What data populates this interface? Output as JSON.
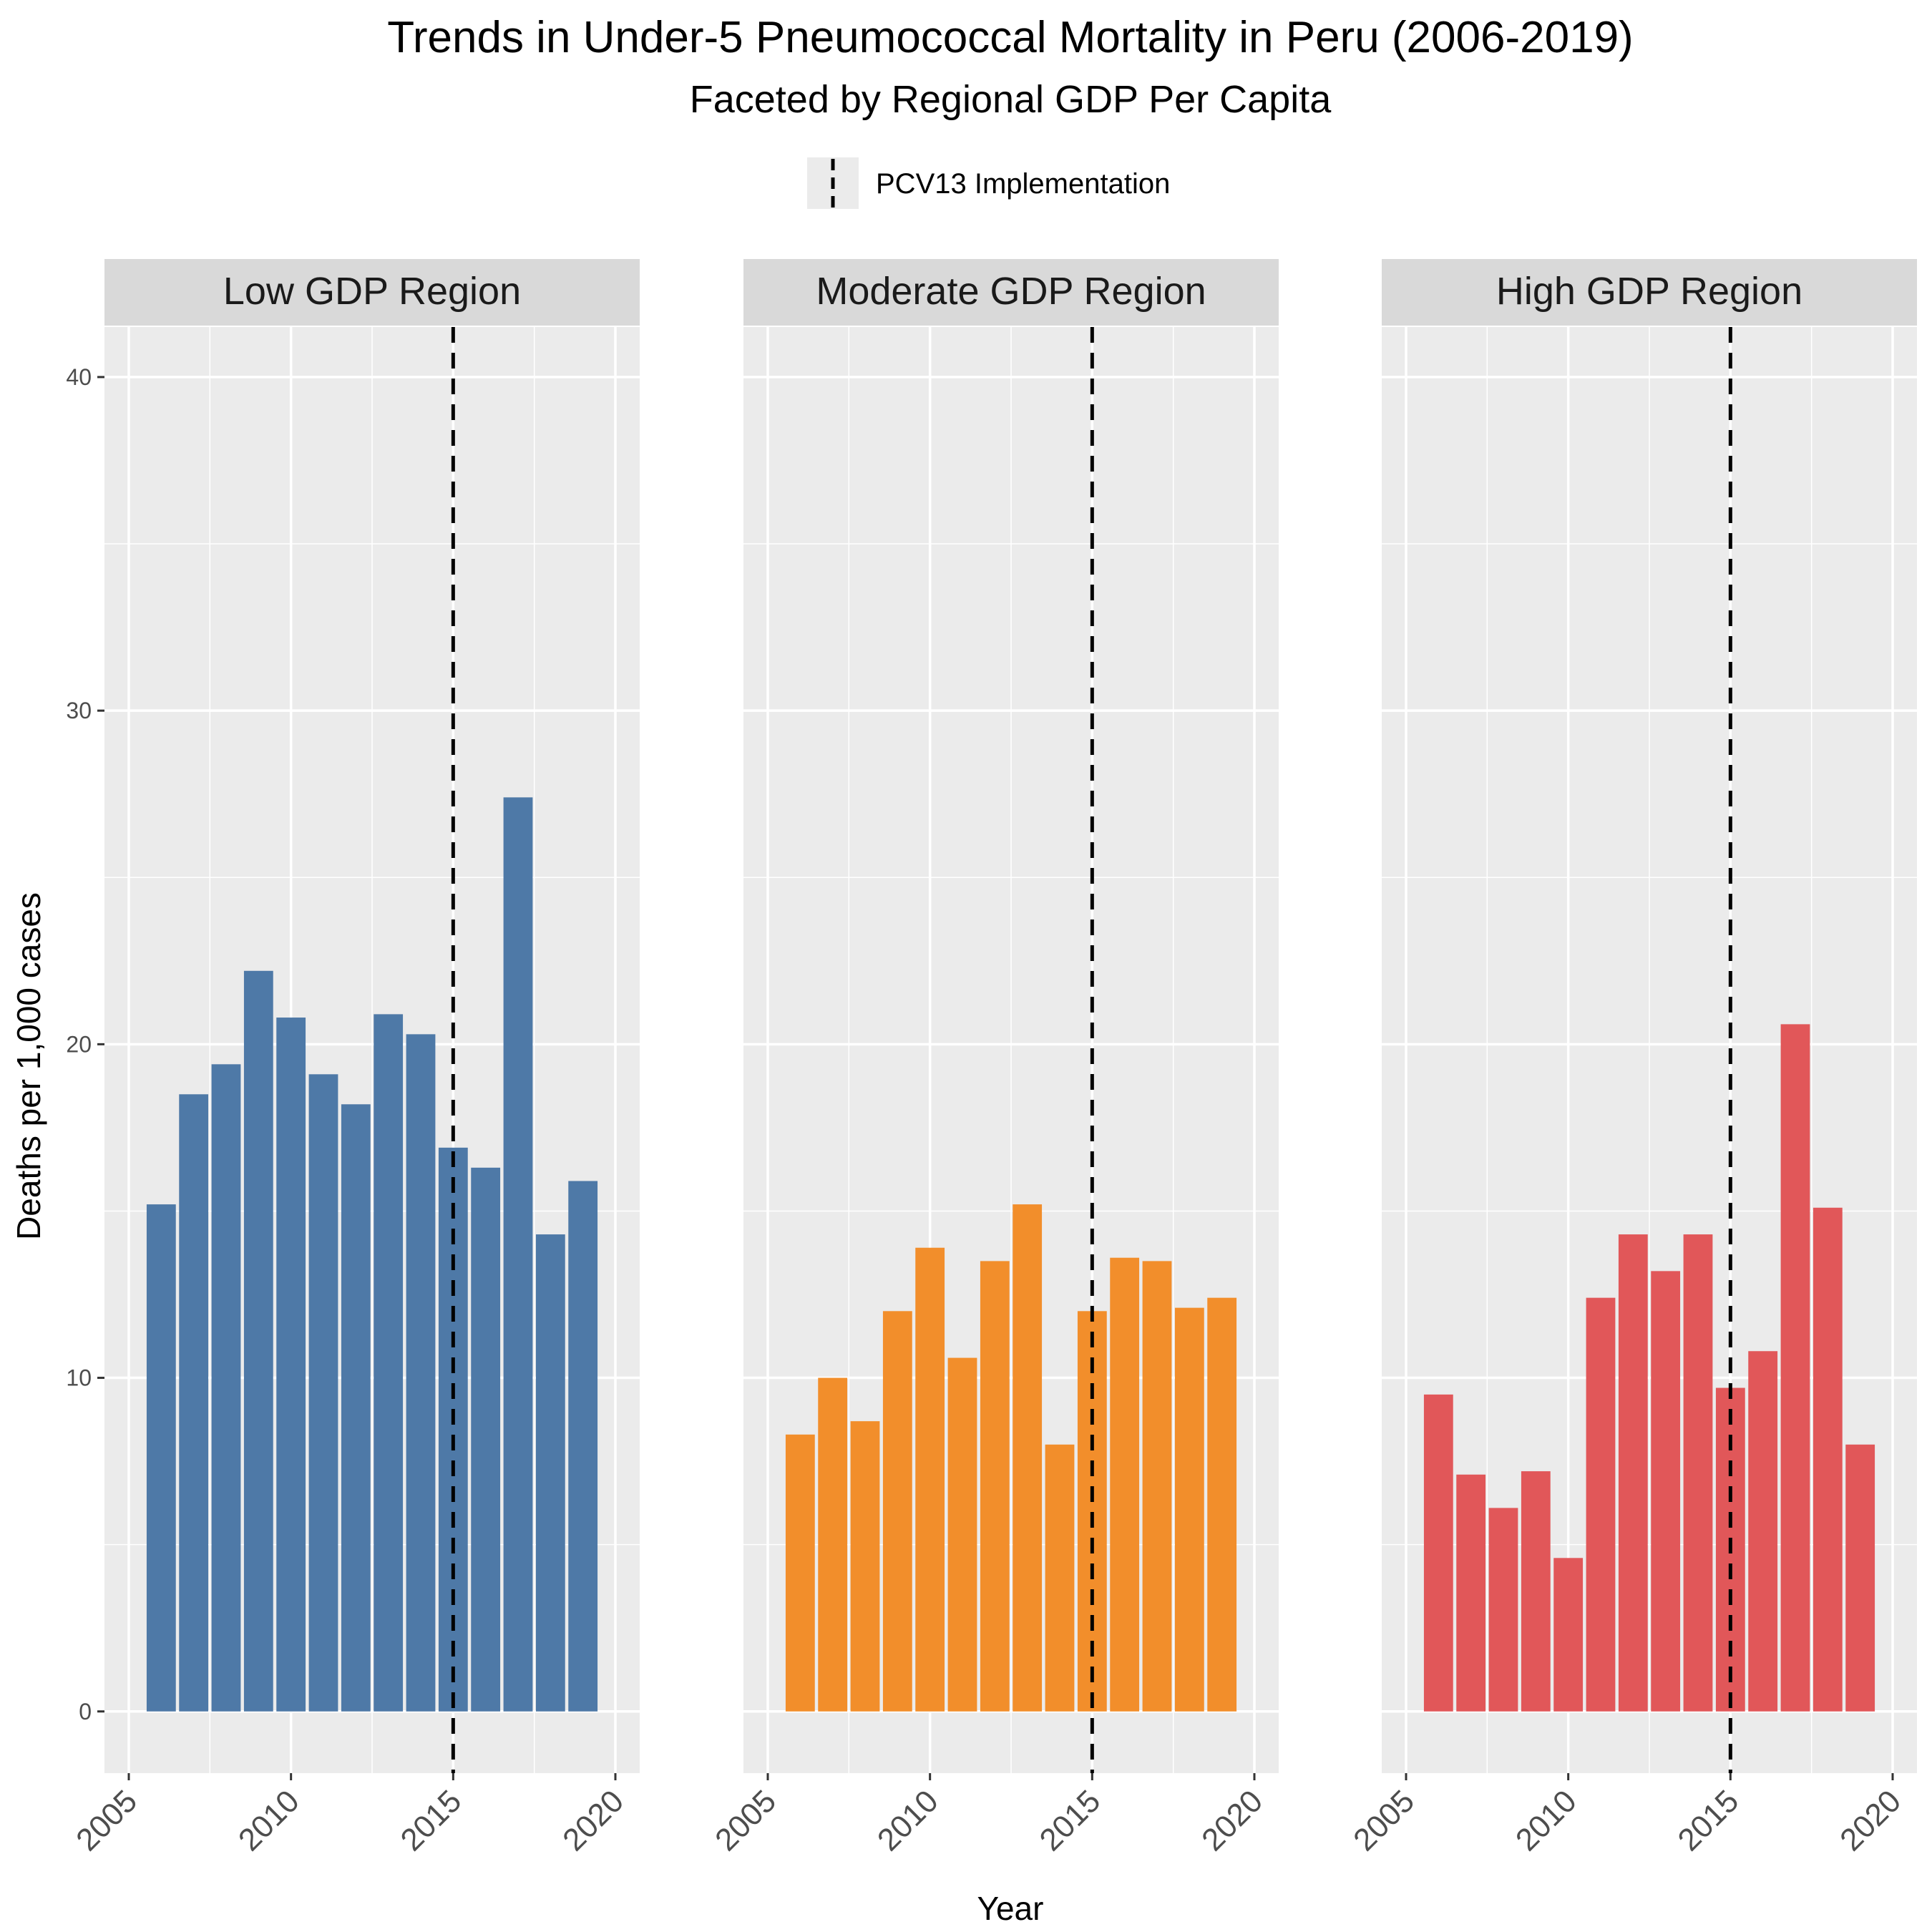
{
  "chart_data": {
    "type": "bar",
    "title": "Trends in Under-5 Pneumococcal Mortality in Peru (2006-2019)",
    "subtitle": "Faceted by Regional GDP Per Capita",
    "xlabel": "Year",
    "ylabel": "Deaths per 1,000 cases",
    "x_ticks": [
      "2005",
      "2010",
      "2015",
      "2020"
    ],
    "y_ticks": [
      "0",
      "10",
      "20",
      "30",
      "40"
    ],
    "xlim": [
      2005,
      2020
    ],
    "ylim": [
      0,
      40
    ],
    "grid": true,
    "legend": {
      "position": "top",
      "label": "PCV13 Implementation"
    },
    "reference_line": {
      "x": 2015,
      "style": "dashed",
      "color": "#000000"
    },
    "years": [
      2006,
      2007,
      2008,
      2009,
      2010,
      2011,
      2012,
      2013,
      2014,
      2015,
      2016,
      2017,
      2018,
      2019
    ],
    "facets": [
      {
        "name": "Low GDP Region",
        "color": "#4E79A7",
        "values": [
          15.2,
          18.5,
          19.4,
          22.2,
          20.8,
          19.1,
          18.2,
          20.9,
          20.3,
          16.9,
          16.3,
          27.4,
          14.3,
          15.9
        ]
      },
      {
        "name": "Moderate GDP Region",
        "color": "#F28E2B",
        "values": [
          8.3,
          10.0,
          8.7,
          12.0,
          13.9,
          10.6,
          13.5,
          15.2,
          8.0,
          12.0,
          13.6,
          13.5,
          12.1,
          12.4
        ]
      },
      {
        "name": "High GDP Region",
        "color": "#E15759",
        "values": [
          9.5,
          7.1,
          6.1,
          7.2,
          4.6,
          12.4,
          14.3,
          13.2,
          14.3,
          9.7,
          10.8,
          20.6,
          15.1,
          8.0
        ]
      }
    ]
  }
}
